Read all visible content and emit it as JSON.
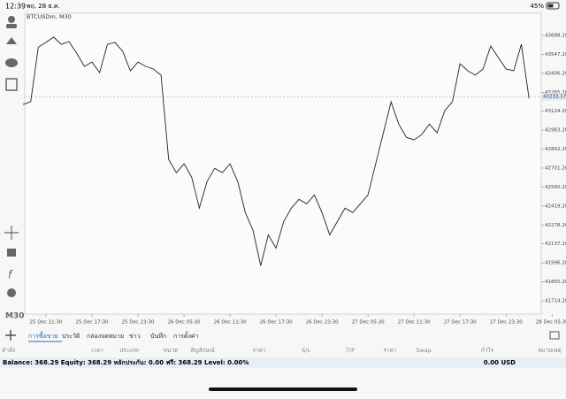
{
  "status_bar": {
    "time": "12:39",
    "date": "พฤ. 28 ธ.ค.",
    "battery": "45%"
  },
  "sidebar": {
    "timeframe": "M30"
  },
  "chart_data": {
    "type": "line",
    "title": "BTCUSDm, M30",
    "categories": [
      null,
      null,
      null,
      "25 Dec 11:30",
      null,
      null,
      null,
      null,
      null,
      "25 Dec 17:30",
      null,
      null,
      null,
      null,
      null,
      "25 Dec 23:30",
      null,
      null,
      null,
      null,
      null,
      "26 Dec 05:30",
      null,
      null,
      null,
      null,
      null,
      "26 Dec 11:30",
      null,
      null,
      null,
      null,
      null,
      "26 Dec 17:30",
      null,
      null,
      null,
      null,
      null,
      "26 Dec 23:30",
      null,
      null,
      null,
      null,
      null,
      "27 Dec 05:30",
      null,
      null,
      null,
      null,
      null,
      "27 Dec 11:30",
      null,
      null,
      null,
      null,
      null,
      "27 Dec 17:30",
      null,
      null,
      null,
      null,
      null,
      "27 Dec 23:30",
      null,
      null,
      null,
      null,
      null,
      "28 Dec 05:30"
    ],
    "series": [
      {
        "name": "BTCUSDm",
        "color": "#222222",
        "values": [
          43174,
          43194,
          43600,
          43636,
          43675,
          43622,
          43642,
          43556,
          43458,
          43490,
          43411,
          43622,
          43636,
          43570,
          43425,
          43490,
          43458,
          43438,
          43392,
          42766,
          42667,
          42733,
          42634,
          42403,
          42601,
          42700,
          42667,
          42733,
          42601,
          42370,
          42238,
          41975,
          42205,
          42106,
          42304,
          42403,
          42469,
          42436,
          42502,
          42370,
          42205,
          42304,
          42403,
          42370,
          42436,
          42502,
          42733,
          42964,
          43194,
          43029,
          42930,
          42911,
          42950,
          43029,
          42964,
          43128,
          43194,
          43477,
          43425,
          43392,
          43438,
          43609,
          43523,
          43438,
          43425,
          43622,
          43220,
          null,
          null,
          null
        ]
      }
    ],
    "current_price": {
      "value": 43233.17,
      "label": "43233.17"
    },
    "ylim": [
      41615.5,
      43852.7
    ],
    "yticks": [
      {
        "value": 43688.2,
        "label": "43688.20"
      },
      {
        "value": 43547.2,
        "label": "43547.20"
      },
      {
        "value": 43406.2,
        "label": "43406.20"
      },
      {
        "value": 43265.2,
        "label": "43265.20"
      },
      {
        "value": 43124.2,
        "label": "43124.20"
      },
      {
        "value": 42983.2,
        "label": "42983.20"
      },
      {
        "value": 42842.2,
        "label": "42842.20"
      },
      {
        "value": 42701.2,
        "label": "42701.20"
      },
      {
        "value": 42560.2,
        "label": "42560.20"
      },
      {
        "value": 42419.2,
        "label": "42419.20"
      },
      {
        "value": 42278.2,
        "label": "42278.20"
      },
      {
        "value": 42137.2,
        "label": "42137.20"
      },
      {
        "value": 41996.2,
        "label": "41996.20"
      },
      {
        "value": 41855.2,
        "label": "41855.20"
      },
      {
        "value": 41714.2,
        "label": "41714.20"
      }
    ]
  },
  "tabs": [
    "การซื้อขาย",
    "ประวัติ",
    "กล่องจดหมาย",
    "ข่าว",
    "บันทึก",
    "การตั้งค่า"
  ],
  "table": {
    "headers": [
      "คำสั่ง",
      "เวลา",
      "ประเภท",
      "ขนาด",
      "สัญลักษณ์",
      "ราคา",
      "S/L",
      "T/P",
      "ราคา",
      "Swap",
      "กำไร",
      "หมายเหตุ"
    ]
  },
  "balance": {
    "summary": "Balance: 368.29 Equity: 368.29 หลักประกัน: 0.00 ฟรี: 368.29 Level: 0.00%",
    "total": "0.00 USD"
  }
}
